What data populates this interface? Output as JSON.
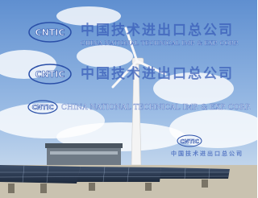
{
  "watermarks": [
    {
      "logo": "CNTIC",
      "text": "中国技术进出口总公司",
      "subtext": "CHINA NATIONAL TECHNICAL IMP. & EXP. CORP."
    },
    {
      "logo": "CNTIC",
      "text": "中国技术进出口总公司"
    },
    {
      "logo": "CNTIC",
      "text": "CHINA NATIONAL TECHNICAL IMP. & EXP. CORP."
    },
    {
      "logo": "CNTIC",
      "text": "中国技术进出口总公司"
    }
  ]
}
